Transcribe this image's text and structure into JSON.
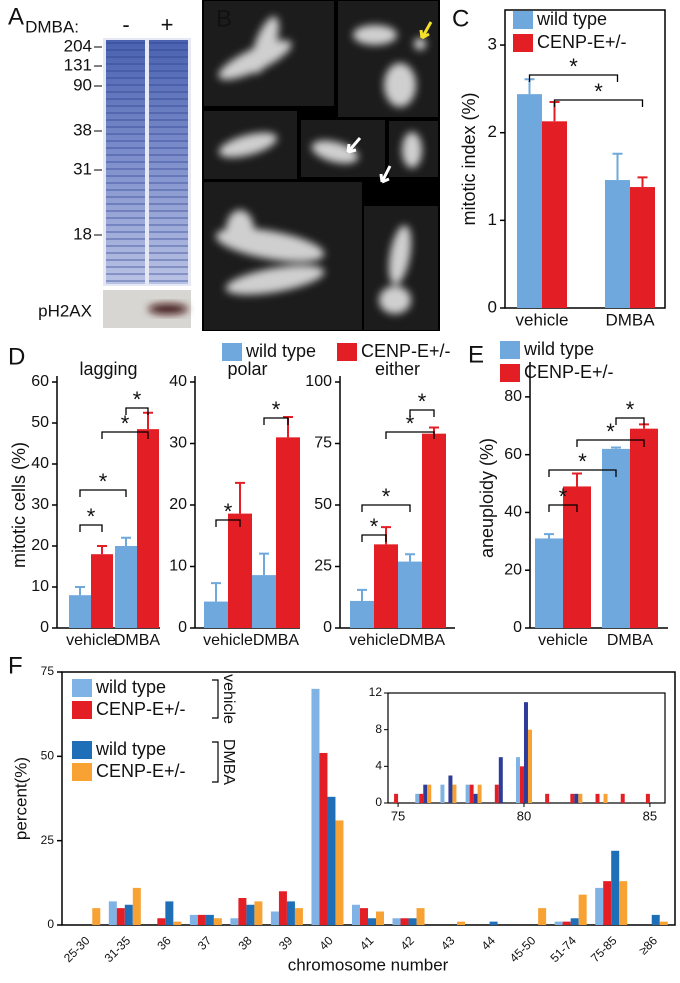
{
  "panel_labels": [
    "A",
    "B",
    "C",
    "D",
    "E",
    "F"
  ],
  "gel": {
    "label": "DMBA:",
    "lanes": [
      "-",
      "+"
    ],
    "markers": [
      204,
      131,
      90,
      38,
      31,
      18
    ],
    "blot_label": "pH2AX"
  },
  "chart_data": [
    {
      "type": "bar",
      "ylabel": "mitotic index (%)",
      "categories": [
        "vehicle",
        "DMBA"
      ],
      "ylim": [
        0,
        3.4
      ],
      "yticks": [
        0,
        1,
        2,
        3
      ],
      "annotations": [
        "*",
        "*"
      ],
      "series": [
        {
          "name": "wild type",
          "color": "#6fa8dc",
          "values": [
            2.44,
            1.46
          ],
          "errors": [
            0.17,
            0.3
          ]
        },
        {
          "name": "CENP-E+/-",
          "color": "#e31e24",
          "values": [
            2.13,
            1.38
          ],
          "errors": [
            0.22,
            0.11
          ]
        }
      ]
    },
    {
      "type": "bar",
      "title": "lagging",
      "ylabel": "mitotic cells (%)",
      "categories": [
        "vehicle",
        "DMBA"
      ],
      "ylim": [
        0,
        60
      ],
      "yticks": [
        0,
        10,
        20,
        30,
        40,
        50,
        60
      ],
      "annotations": [
        "*",
        "*",
        "*",
        "*"
      ],
      "series": [
        {
          "name": "wild type",
          "color": "#6fa8dc",
          "values": [
            8,
            20
          ],
          "errors": [
            2,
            2
          ]
        },
        {
          "name": "CENP-E+/-",
          "color": "#e31e24",
          "values": [
            18,
            48.5
          ],
          "errors": [
            2,
            4
          ]
        }
      ]
    },
    {
      "type": "bar",
      "title": "polar",
      "categories": [
        "vehicle",
        "DMBA"
      ],
      "ylim": [
        0,
        40
      ],
      "yticks": [
        0,
        10,
        20,
        30,
        40
      ],
      "annotations": [
        "*",
        "*"
      ],
      "series": [
        {
          "color": "#6fa8dc",
          "values": [
            4.3,
            8.6
          ],
          "errors": [
            3,
            3.5
          ]
        },
        {
          "color": "#e31e24",
          "values": [
            18.6,
            31
          ],
          "errors": [
            5,
            3.3
          ]
        }
      ]
    },
    {
      "type": "bar",
      "title": "either",
      "categories": [
        "vehicle",
        "DMBA"
      ],
      "ylim": [
        0,
        100
      ],
      "yticks": [
        0,
        25,
        50,
        75,
        100
      ],
      "annotations": [
        "*",
        "*",
        "*",
        "*"
      ],
      "series": [
        {
          "color": "#6fa8dc",
          "values": [
            11,
            27
          ],
          "errors": [
            4.5,
            3
          ]
        },
        {
          "color": "#e31e24",
          "values": [
            34,
            79
          ],
          "errors": [
            7,
            2.5
          ]
        }
      ]
    },
    {
      "type": "bar",
      "ylabel": "aneuploidy (%)",
      "categories": [
        "vehicle",
        "DMBA"
      ],
      "ylim": [
        0,
        90
      ],
      "yticks": [
        0,
        20,
        40,
        60,
        80
      ],
      "annotations": [
        "*",
        "*",
        "*",
        "*"
      ],
      "series": [
        {
          "name": "wild type",
          "color": "#6fa8dc",
          "values": [
            31,
            62
          ],
          "errors": [
            1.5,
            0.5
          ]
        },
        {
          "name": "CENP-E+/-",
          "color": "#e31e24",
          "values": [
            49,
            69
          ],
          "errors": [
            4.5,
            1.5
          ]
        }
      ]
    },
    {
      "type": "bar",
      "xlabel": "chromosome number",
      "ylabel": "percent(%)",
      "legend_groups": [
        "vehicle",
        "DMBA"
      ],
      "categories": [
        "25-30",
        "31-35",
        "36",
        "37",
        "38",
        "39",
        "40",
        "41",
        "42",
        "43",
        "44",
        "45-50",
        "51-74",
        "75-85",
        "≥86"
      ],
      "ylim": [
        0,
        75
      ],
      "yticks": [
        0,
        25,
        50,
        75
      ],
      "series": [
        {
          "name": "wild type",
          "color": "#7fb2e5",
          "values": [
            0,
            7,
            0,
            3,
            2,
            4,
            70,
            6,
            2,
            0,
            0,
            0,
            1,
            11,
            0
          ]
        },
        {
          "name": "CENP-E+/-",
          "color": "#e31e24",
          "values": [
            0,
            5,
            2,
            3,
            8,
            10,
            51,
            5,
            2,
            0,
            0,
            0,
            1,
            13,
            0
          ]
        },
        {
          "name": "wild type",
          "color": "#1f6fb8",
          "values": [
            0,
            6,
            7,
            3,
            6,
            7,
            38,
            2,
            2,
            0,
            1,
            0,
            2,
            22,
            3
          ]
        },
        {
          "name": "CENP-E+/-",
          "color": "#f7a233",
          "values": [
            5,
            11,
            1,
            2,
            7,
            5,
            31,
            4,
            5,
            1,
            0,
            5,
            9,
            13,
            1
          ]
        }
      ]
    },
    {
      "type": "bar",
      "x": [
        75,
        76,
        77,
        78,
        79,
        80,
        81,
        82,
        83,
        84,
        85
      ],
      "xlim": [
        74.6,
        85.6
      ],
      "xticks": [
        75,
        80,
        85
      ],
      "ylim": [
        0,
        12
      ],
      "yticks": [
        0,
        4,
        8,
        12
      ],
      "series": [
        {
          "color": "#7fb2e5",
          "values": [
            0,
            1,
            2,
            2,
            0,
            5,
            0,
            0,
            0,
            0,
            0
          ]
        },
        {
          "color": "#e31e24",
          "values": [
            1,
            1,
            0,
            2,
            2,
            4,
            1,
            1,
            1,
            1,
            1
          ]
        },
        {
          "color": "#2e3c99",
          "values": [
            0,
            2,
            3,
            1,
            5,
            11,
            0,
            1,
            0,
            0,
            0
          ]
        },
        {
          "color": "#f7a233",
          "values": [
            0,
            2,
            2,
            2,
            0,
            8,
            0,
            1,
            1,
            0,
            0
          ]
        }
      ]
    }
  ]
}
